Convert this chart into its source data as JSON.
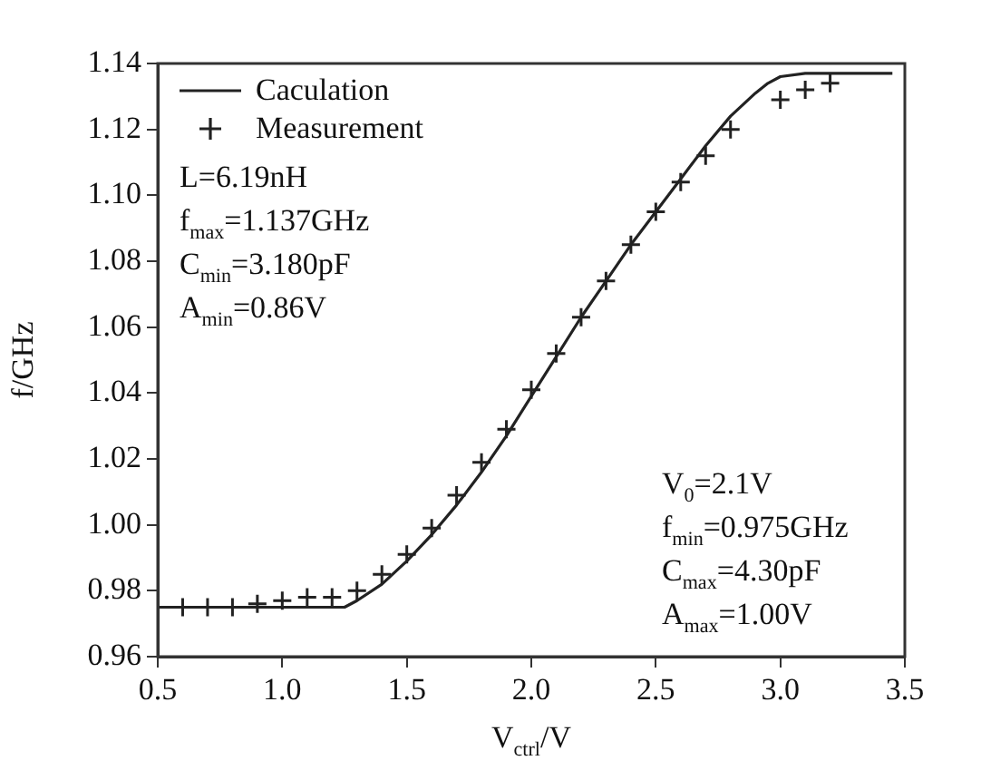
{
  "chart_data": {
    "type": "line",
    "xlabel": "V$_{ctrl}$/V",
    "ylabel": "f/GHz",
    "xlim": [
      0.5,
      3.5
    ],
    "ylim": [
      0.96,
      1.14
    ],
    "xticks": [
      0.5,
      {
        "value": 1,
        "label": "1.0"
      },
      1.5,
      {
        "value": 2,
        "label": "2.0"
      },
      2.5,
      {
        "value": 3,
        "label": "3.0"
      },
      3.5
    ],
    "yticks": [
      0.96,
      0.98,
      {
        "value": 1,
        "label": "1.00"
      },
      1.02,
      1.04,
      1.06,
      1.08,
      {
        "value": 1.1,
        "label": "1.10"
      },
      1.12,
      1.14
    ],
    "legend": "top left",
    "grid": false,
    "series": [
      {
        "name": "Caculation",
        "type": "line",
        "color": "#222222",
        "marker": "none",
        "line_style": "solid",
        "x": [
          0.5,
          1.25,
          1.3,
          1.4,
          1.5,
          1.6,
          1.7,
          1.8,
          1.9,
          2.0,
          2.1,
          2.2,
          2.3,
          2.4,
          2.5,
          2.6,
          2.7,
          2.8,
          2.9,
          2.95,
          3.0,
          3.1,
          3.45
        ],
        "values": [
          0.975,
          0.975,
          0.977,
          0.982,
          0.989,
          0.997,
          1.006,
          1.016,
          1.027,
          1.039,
          1.051,
          1.063,
          1.074,
          1.085,
          1.095,
          1.105,
          1.115,
          1.124,
          1.131,
          1.134,
          1.136,
          1.137,
          1.137
        ]
      },
      {
        "name": "Measurement",
        "type": "scatter",
        "color": "#222222",
        "marker": "cross",
        "x": [
          0.6,
          0.7,
          0.8,
          0.9,
          1.0,
          1.1,
          1.2,
          1.3,
          1.4,
          1.5,
          1.6,
          1.7,
          1.8,
          1.9,
          2.0,
          2.1,
          2.2,
          2.3,
          2.4,
          2.5,
          2.6,
          2.7,
          2.8,
          3.0,
          3.1,
          3.2
        ],
        "values": [
          0.975,
          0.975,
          0.975,
          0.976,
          0.977,
          0.978,
          0.978,
          0.98,
          0.985,
          0.991,
          0.999,
          1.009,
          1.019,
          1.029,
          1.041,
          1.052,
          1.063,
          1.074,
          1.085,
          1.095,
          1.104,
          1.112,
          1.12,
          1.129,
          1.132,
          1.134
        ]
      }
    ],
    "annotations": [
      "L=6.19nH",
      "f$_{max}$=1.137GHz",
      "C$_{min}$=3.180pF",
      "A$_{min}$=0.86V",
      "V$_{0}$=2.1V",
      "f$_{min}$=0.975GHz",
      "C$_{max}$=4.30pF",
      "A$_{max}$=1.00V"
    ]
  }
}
